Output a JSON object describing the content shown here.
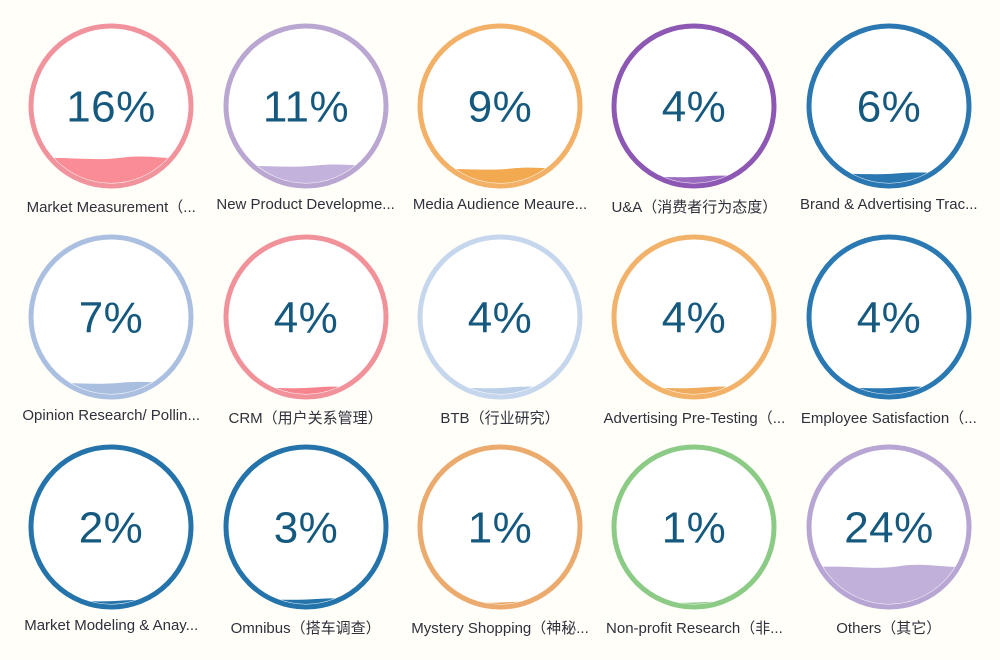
{
  "page": {
    "background_color": "#FFFEF8",
    "value_text_color": "#15597F",
    "label_text_color": "#30303C"
  },
  "chart_data": {
    "type": "liquid_fill_gauge_grid",
    "title": "",
    "unit": "%",
    "layout": {
      "columns": 5,
      "rows": 3,
      "legend": "none",
      "grid": "off"
    },
    "value_range": [
      0,
      100
    ],
    "categories": [
      "Market Measurement（...",
      "New Product Developme...",
      "Media Audience Meaure...",
      "U&A（消费者行为态度）",
      "Brand & Advertising Trac...",
      "Opinion Research/ Pollin...",
      "CRM（用户关系管理）",
      "BTB（行业研究）",
      "Advertising Pre-Testing（...",
      "Employee Satisfaction（...",
      "Market Modeling & Anay...",
      "Omnibus（搭车调查）",
      "Mystery Shopping（神秘...",
      "Non-profit Research（非...",
      "Others（其它）"
    ],
    "values": [
      16,
      11,
      9,
      4,
      6,
      7,
      4,
      4,
      4,
      4,
      2,
      3,
      1,
      1,
      24
    ],
    "items": [
      {
        "label": "Market Measurement（...",
        "value": 16,
        "display": "16%",
        "ring_color": "#F1939D",
        "fill_color": "#FA8C95"
      },
      {
        "label": "New Product Developme...",
        "value": 11,
        "display": "11%",
        "ring_color": "#B9A7D2",
        "fill_color": "#C3B2DB"
      },
      {
        "label": "Media Audience Meaure...",
        "value": 9,
        "display": "9%",
        "ring_color": "#F3B167",
        "fill_color": "#F2A94F"
      },
      {
        "label": "U&A（消费者行为态度）",
        "value": 4,
        "display": "4%",
        "ring_color": "#8D58B4",
        "fill_color": "#9B6BC0"
      },
      {
        "label": "Brand & Advertising Trac...",
        "value": 6,
        "display": "6%",
        "ring_color": "#2A77B1",
        "fill_color": "#2A77B1"
      },
      {
        "label": "Opinion Research/ Pollin...",
        "value": 7,
        "display": "7%",
        "ring_color": "#ABC0E0",
        "fill_color": "#A9BFE0"
      },
      {
        "label": "CRM（用户关系管理）",
        "value": 4,
        "display": "4%",
        "ring_color": "#F1929B",
        "fill_color": "#F5848E"
      },
      {
        "label": "BTB（行业研究）",
        "value": 4,
        "display": "4%",
        "ring_color": "#C6D6EC",
        "fill_color": "#BCCFE8"
      },
      {
        "label": "Advertising Pre-Testing（...",
        "value": 4,
        "display": "4%",
        "ring_color": "#F2B269",
        "fill_color": "#EFAC5E"
      },
      {
        "label": "Employee Satisfaction（...",
        "value": 4,
        "display": "4%",
        "ring_color": "#2B79B2",
        "fill_color": "#2B79B2"
      },
      {
        "label": "Market Modeling & Anay...",
        "value": 2,
        "display": "2%",
        "ring_color": "#2473AA",
        "fill_color": "#2473AA"
      },
      {
        "label": "Omnibus（搭车调查）",
        "value": 3,
        "display": "3%",
        "ring_color": "#2473AA",
        "fill_color": "#2473AA"
      },
      {
        "label": "Mystery Shopping（神秘...",
        "value": 1,
        "display": "1%",
        "ring_color": "#EBAA6E",
        "fill_color": "#E8A159"
      },
      {
        "label": "Non-profit Research（非...",
        "value": 1,
        "display": "1%",
        "ring_color": "#8CCB86",
        "fill_color": "#84C67E"
      },
      {
        "label": "Others（其它）",
        "value": 24,
        "display": "24%",
        "ring_color": "#B7A6D3",
        "fill_color": "#C1B0DA"
      }
    ]
  }
}
